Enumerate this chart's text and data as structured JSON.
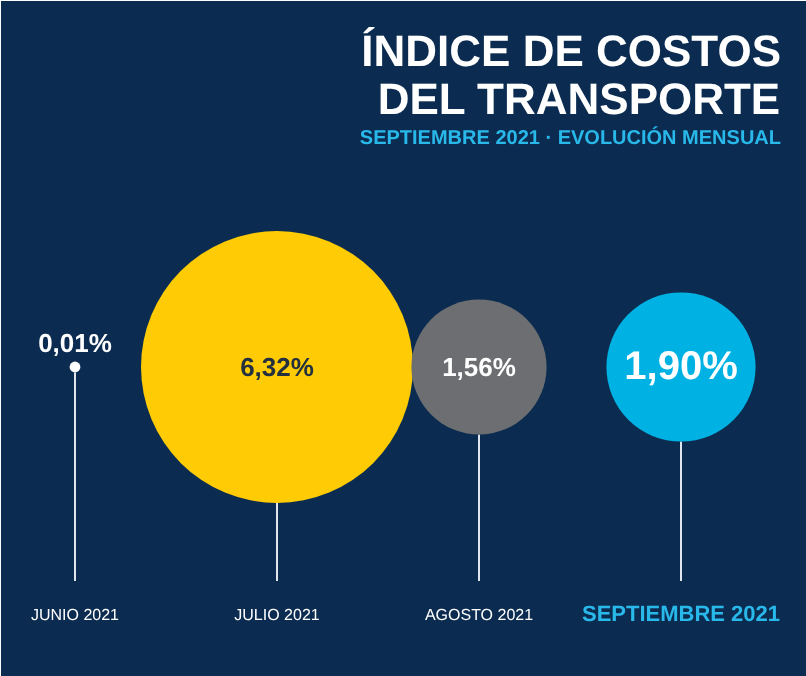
{
  "chart_data": {
    "type": "other",
    "title": "ÍNDICE DE COSTOS\nDEL TRANSPORTE",
    "subtitle": "SEPTIEMBRE 2021 · EVOLUCIÓN MENSUAL",
    "categories": [
      "JUNIO 2021",
      "JULIO 2021",
      "AGOSTO 2021",
      "SEPTIEMBRE 2021"
    ],
    "values": [
      0.01,
      6.32,
      1.56,
      1.9
    ],
    "value_labels": [
      "0,01%",
      "6,32%",
      "1,56%",
      "1,90%"
    ],
    "colors": [
      "#ffffff",
      "#fecb05",
      "#6d6e71",
      "#00b2e3"
    ]
  }
}
